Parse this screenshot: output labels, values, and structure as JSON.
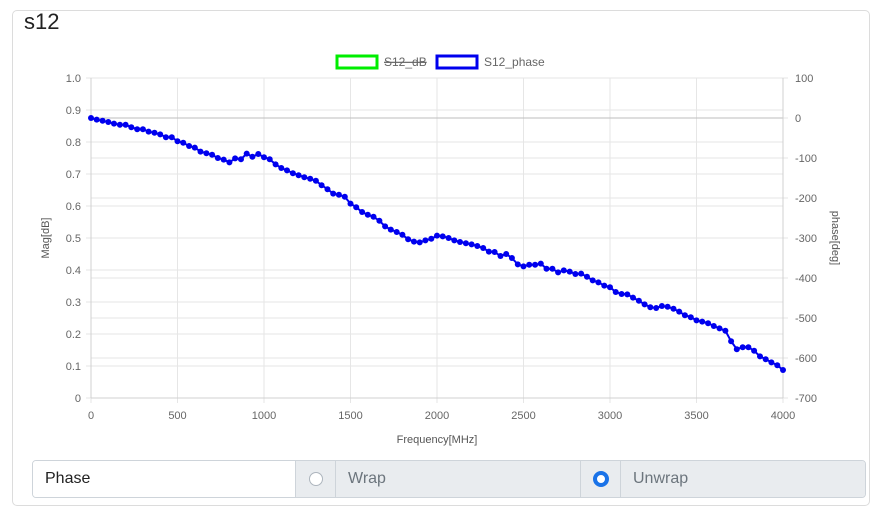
{
  "card": {
    "title": "s12"
  },
  "controls": {
    "label": "Phase",
    "options": [
      {
        "label": "Wrap",
        "checked": false
      },
      {
        "label": "Unwrap",
        "checked": true
      }
    ]
  },
  "chart_data": {
    "type": "line",
    "xlabel": "Frequency[MHz]",
    "ylabel_left": "Mag[dB]",
    "ylabel_right": "phase[deg]",
    "xlim": [
      0,
      4000
    ],
    "ylim_left": [
      0,
      1.0
    ],
    "ylim_right": [
      -700,
      100
    ],
    "x_ticks": [
      "0",
      "500",
      "1000",
      "1500",
      "2000",
      "2500",
      "3000",
      "3500",
      "4000"
    ],
    "y_left_ticks": [
      "0",
      "0.1",
      "0.2",
      "0.3",
      "0.4",
      "0.5",
      "0.6",
      "0.7",
      "0.8",
      "0.9",
      "1.0"
    ],
    "y_right_ticks": [
      "100",
      "0",
      "-100",
      "-200",
      "-300",
      "-400",
      "-500",
      "-600",
      "-700"
    ],
    "grid": true,
    "legend_position": "top-center",
    "series": [
      {
        "name": "S12_dB",
        "color": "#00ee00",
        "hidden": true,
        "axis": "left",
        "values": []
      },
      {
        "name": "S12_phase",
        "color": "#0000ee",
        "hidden": false,
        "axis": "right",
        "x": [
          0,
          33,
          67,
          100,
          133,
          167,
          200,
          233,
          267,
          300,
          333,
          367,
          400,
          433,
          467,
          500,
          533,
          567,
          600,
          633,
          667,
          700,
          733,
          767,
          800,
          833,
          867,
          900,
          933,
          967,
          1000,
          1033,
          1067,
          1100,
          1133,
          1167,
          1200,
          1233,
          1267,
          1300,
          1333,
          1367,
          1400,
          1433,
          1467,
          1500,
          1533,
          1567,
          1600,
          1633,
          1667,
          1700,
          1733,
          1767,
          1800,
          1833,
          1867,
          1900,
          1933,
          1967,
          2000,
          2033,
          2067,
          2100,
          2133,
          2167,
          2200,
          2233,
          2267,
          2300,
          2333,
          2367,
          2400,
          2433,
          2467,
          2500,
          2533,
          2567,
          2600,
          2633,
          2667,
          2700,
          2733,
          2767,
          2800,
          2833,
          2867,
          2900,
          2933,
          2967,
          3000,
          3033,
          3067,
          3100,
          3133,
          3167,
          3200,
          3233,
          3267,
          3300,
          3333,
          3367,
          3400,
          3433,
          3467,
          3500,
          3533,
          3567,
          3600,
          3633,
          3667,
          3700,
          3733,
          3767,
          3800,
          3833,
          3867,
          3900,
          3933,
          3967,
          4000
        ],
        "values": [
          0,
          -4,
          -7,
          -10,
          -14,
          -17,
          -17,
          -23,
          -28,
          -28,
          -34,
          -37,
          -41,
          -48,
          -48,
          -58,
          -62,
          -70,
          -74,
          -84,
          -88,
          -92,
          -100,
          -104,
          -111,
          -101,
          -103,
          -89,
          -97,
          -90,
          -98,
          -103,
          -116,
          -125,
          -131,
          -138,
          -143,
          -148,
          -152,
          -157,
          -168,
          -178,
          -189,
          -192,
          -197,
          -214,
          -223,
          -235,
          -242,
          -247,
          -257,
          -271,
          -279,
          -285,
          -292,
          -303,
          -309,
          -311,
          -306,
          -302,
          -294,
          -296,
          -300,
          -306,
          -310,
          -313,
          -316,
          -320,
          -325,
          -334,
          -335,
          -345,
          -340,
          -350,
          -366,
          -371,
          -367,
          -367,
          -364,
          -377,
          -377,
          -386,
          -381,
          -384,
          -390,
          -389,
          -397,
          -406,
          -411,
          -419,
          -423,
          -435,
          -440,
          -441,
          -449,
          -457,
          -466,
          -473,
          -475,
          -470,
          -472,
          -477,
          -484,
          -493,
          -498,
          -506,
          -509,
          -513,
          -520,
          -526,
          -532,
          -558,
          -578,
          -573,
          -573,
          -582,
          -596,
          -603,
          -611,
          -618,
          -630
        ]
      }
    ]
  }
}
